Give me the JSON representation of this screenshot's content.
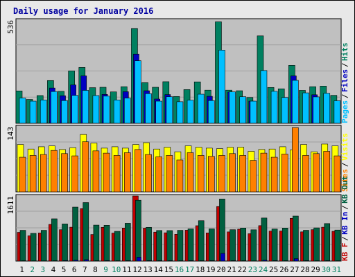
{
  "title": "Daily usage for January 2016",
  "colors": {
    "title": "#0000a0",
    "panel_bg": "#c0c0c0",
    "pages": "#00c0ff",
    "files": "#0000c0",
    "hits": "#008060",
    "visits": "#ffff00",
    "sites": "#ff8000",
    "kb_in": "#0000c0",
    "kb_out": "#006040",
    "kb_f": "#c00000",
    "weekday_label": "#000000",
    "weekend_label": "#008060"
  },
  "chart_data": [
    {
      "type": "bar",
      "panel": "hits-files-pages",
      "y_max_label": "536",
      "ylim": [
        0,
        536
      ],
      "legend": [
        "Pages",
        "Files",
        "Hits"
      ],
      "categories": [
        "1",
        "2",
        "3",
        "4",
        "5",
        "6",
        "7",
        "8",
        "9",
        "10",
        "11",
        "12",
        "13",
        "14",
        "15",
        "16",
        "17",
        "18",
        "19",
        "20",
        "21",
        "22",
        "23",
        "24",
        "25",
        "26",
        "27",
        "28",
        "29",
        "30",
        "31"
      ],
      "weekend_days": [
        "2",
        "3",
        "9",
        "10",
        "16",
        "17",
        "23",
        "24",
        "30",
        "31"
      ],
      "series": [
        {
          "name": "Hits",
          "values": [
            168,
            124,
            144,
            222,
            166,
            272,
            290,
            185,
            187,
            163,
            190,
            492,
            211,
            187,
            216,
            139,
            175,
            215,
            172,
            527,
            172,
            169,
            134,
            454,
            186,
            179,
            301,
            171,
            190,
            193,
            145
          ]
        },
        {
          "name": "Files",
          "values": [
            0,
            0,
            0,
            183,
            143,
            199,
            246,
            0,
            150,
            0,
            164,
            359,
            169,
            126,
            149,
            0,
            0,
            0,
            140,
            0,
            162,
            0,
            115,
            0,
            0,
            0,
            246,
            0,
            148,
            0,
            0
          ]
        },
        {
          "name": "Pages",
          "values": [
            131,
            115,
            121,
            165,
            118,
            145,
            171,
            144,
            141,
            121,
            131,
            325,
            154,
            115,
            138,
            112,
            120,
            151,
            118,
            380,
            163,
            138,
            115,
            274,
            166,
            134,
            223,
            158,
            137,
            156,
            117
          ]
        }
      ]
    },
    {
      "type": "bar",
      "panel": "visits-sites",
      "y_max_label": "143",
      "ylim": [
        0,
        143
      ],
      "legend": [
        "Sites",
        "Visits"
      ],
      "categories": [
        "1",
        "2",
        "3",
        "4",
        "5",
        "6",
        "7",
        "8",
        "9",
        "10",
        "11",
        "12",
        "13",
        "14",
        "15",
        "16",
        "17",
        "18",
        "19",
        "20",
        "21",
        "22",
        "23",
        "24",
        "25",
        "26",
        "27",
        "28",
        "29",
        "30",
        "31"
      ],
      "series": [
        {
          "name": "Visits",
          "values": [
            104,
            94,
            99,
            101,
            93,
            97,
            126,
            107,
            96,
            99,
            96,
            104,
            108,
            94,
            98,
            88,
            101,
            98,
            96,
            95,
            98,
            98,
            89,
            93,
            94,
            99,
            92,
            104,
            88,
            105,
            101
          ]
        },
        {
          "name": "Sites",
          "values": [
            76,
            80,
            82,
            91,
            84,
            79,
            110,
            90,
            85,
            80,
            86,
            93,
            82,
            77,
            80,
            70,
            86,
            80,
            78,
            80,
            84,
            80,
            69,
            85,
            76,
            83,
            141,
            80,
            84,
            89,
            79
          ]
        }
      ]
    },
    {
      "type": "bar",
      "panel": "kbytes",
      "y_max_label": "1611",
      "ylim": [
        0,
        1611
      ],
      "legend": [
        "KB F",
        "KB In",
        "KB Out"
      ],
      "categories": [
        "1",
        "2",
        "3",
        "4",
        "5",
        "6",
        "7",
        "8",
        "9",
        "10",
        "11",
        "12",
        "13",
        "14",
        "15",
        "16",
        "17",
        "18",
        "19",
        "20",
        "21",
        "22",
        "23",
        "24",
        "25",
        "26",
        "27",
        "28",
        "29",
        "30",
        "31"
      ],
      "series": [
        {
          "name": "KB F",
          "values": [
            711,
            625,
            695,
            908,
            776,
            838,
            1298,
            658,
            835,
            693,
            817,
            1611,
            814,
            716,
            700,
            663,
            764,
            875,
            697,
            1350,
            722,
            789,
            677,
            877,
            743,
            745,
            1058,
            723,
            777,
            838,
            737
          ]
        },
        {
          "name": "KB Out",
          "values": [
            761,
            686,
            761,
            1046,
            919,
            1336,
            1448,
            890,
            885,
            736,
            935,
            1505,
            834,
            757,
            755,
            761,
            796,
            999,
            797,
            1536,
            776,
            818,
            774,
            1066,
            793,
            817,
            1114,
            762,
            822,
            928,
            768
          ]
        },
        {
          "name": "KB In",
          "values": [
            8,
            5,
            5,
            8,
            13,
            22,
            35,
            9,
            12,
            8,
            11,
            95,
            12,
            11,
            11,
            8,
            11,
            9,
            11,
            190,
            11,
            9,
            5,
            22,
            11,
            9,
            60,
            11,
            8,
            10,
            8
          ]
        }
      ]
    }
  ]
}
